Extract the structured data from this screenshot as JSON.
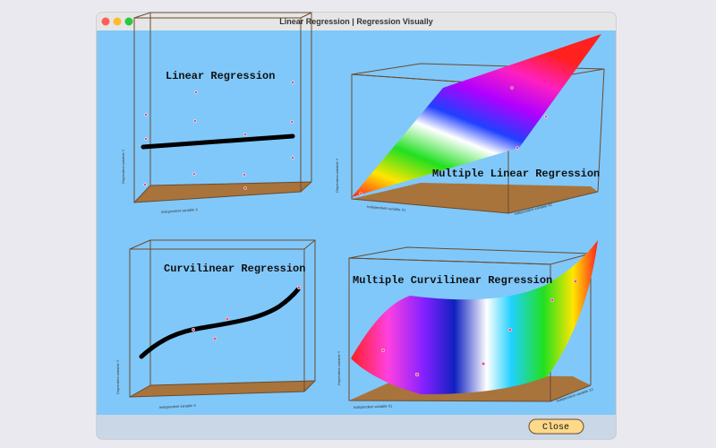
{
  "window": {
    "title": "Linear Regression | Regression Visually"
  },
  "panels": [
    {
      "title": "Linear Regression",
      "x_label": "Independent variable X",
      "y_label": "Dependent variable Y"
    },
    {
      "title": "Multiple Linear Regression",
      "x_label": "Independent variable X1",
      "z_label": "Independent variable X2",
      "y_label": "Dependent variable Y"
    },
    {
      "title": "Curvilinear Regression",
      "x_label": "Independent variable X",
      "y_label": "Dependent variable Y"
    },
    {
      "title": "Multiple Curvilinear Regression",
      "x_label": "Independent variable X1",
      "z_label": "Independent variable X2",
      "y_label": "Dependent variable Y"
    }
  ],
  "buttons": {
    "close": "Close"
  }
}
